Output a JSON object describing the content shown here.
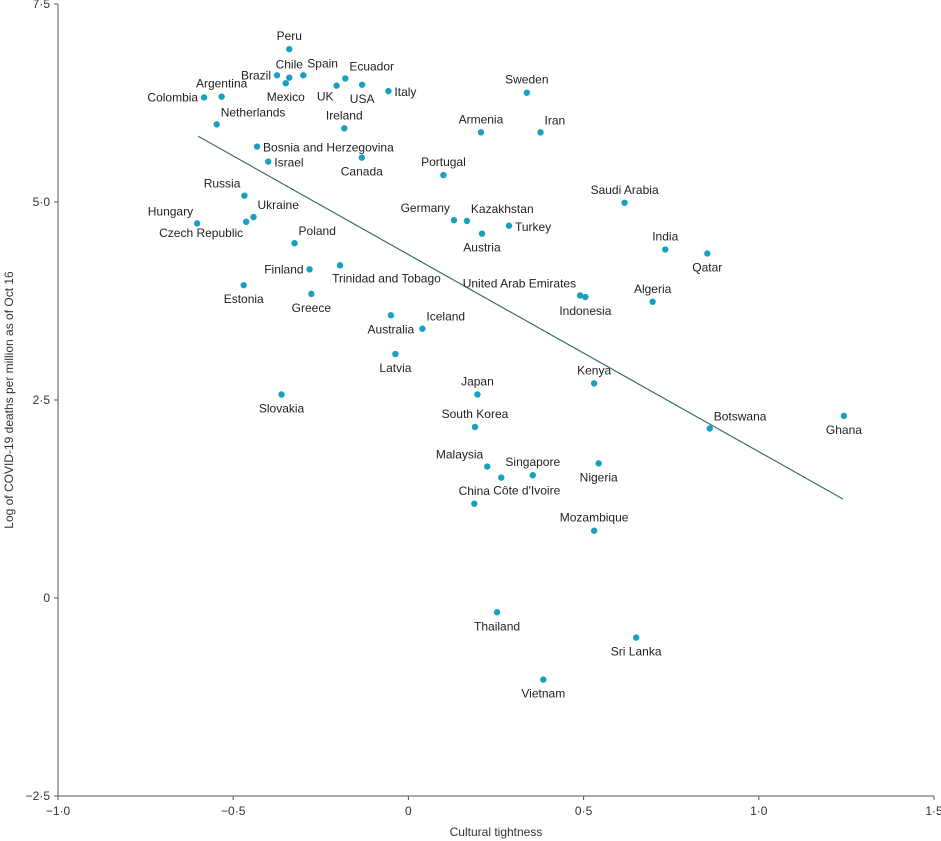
{
  "chart_data": {
    "type": "scatter",
    "xlabel": "Cultural tightness",
    "ylabel": "Log of COVID-19 deaths per million as of Oct 16",
    "xlim": [
      -1.0,
      1.5
    ],
    "ylim": [
      -2.5,
      7.5
    ],
    "xticks": [
      -1.0,
      -0.5,
      0,
      0.5,
      1.0,
      1.5
    ],
    "xtick_labels": [
      "−1·0",
      "−0·5",
      "0",
      "0·5",
      "1·0",
      "1·5"
    ],
    "yticks": [
      -2.5,
      0,
      2.5,
      5.0,
      7.5
    ],
    "ytick_labels": [
      "−2·5",
      "0",
      "2·5",
      "5·0",
      "7·5"
    ],
    "point_color": "#1aa0bf",
    "trend_color": "#3f6b72",
    "trendline": {
      "x": [
        -0.6,
        1.24
      ],
      "y": [
        5.83,
        1.25
      ]
    },
    "points": [
      {
        "name": "Peru",
        "x": -0.34,
        "y": 6.93,
        "pos": "above"
      },
      {
        "name": "Brazil",
        "x": -0.375,
        "y": 6.6,
        "pos": "left"
      },
      {
        "name": "Chile",
        "x": -0.34,
        "y": 6.57,
        "pos": "above"
      },
      {
        "name": "Spain",
        "x": -0.3,
        "y": 6.6,
        "pos": "above-right"
      },
      {
        "name": "Mexico",
        "x": -0.35,
        "y": 6.5,
        "pos": "below"
      },
      {
        "name": "Ecuador",
        "x": -0.18,
        "y": 6.56,
        "pos": "above-right"
      },
      {
        "name": "UK",
        "x": -0.205,
        "y": 6.47,
        "pos": "below-left"
      },
      {
        "name": "USA",
        "x": -0.132,
        "y": 6.48,
        "pos": "below"
      },
      {
        "name": "Italy",
        "x": -0.057,
        "y": 6.4,
        "pos": "right"
      },
      {
        "name": "Argentina",
        "x": -0.533,
        "y": 6.33,
        "pos": "above"
      },
      {
        "name": "Colombia",
        "x": -0.583,
        "y": 6.32,
        "pos": "left"
      },
      {
        "name": "Sweden",
        "x": 0.338,
        "y": 6.38,
        "pos": "above"
      },
      {
        "name": "Netherlands",
        "x": -0.547,
        "y": 5.98,
        "pos": "above-right"
      },
      {
        "name": "Ireland",
        "x": -0.183,
        "y": 5.93,
        "pos": "above"
      },
      {
        "name": "Armenia",
        "x": 0.207,
        "y": 5.88,
        "pos": "above"
      },
      {
        "name": "Iran",
        "x": 0.377,
        "y": 5.88,
        "pos": "above-right"
      },
      {
        "name": "Bosnia and Herzegovina",
        "x": -0.432,
        "y": 5.7,
        "pos": "right"
      },
      {
        "name": "Canada",
        "x": -0.133,
        "y": 5.56,
        "pos": "below"
      },
      {
        "name": "Israel",
        "x": -0.4,
        "y": 5.51,
        "pos": "right"
      },
      {
        "name": "Portugal",
        "x": 0.1,
        "y": 5.34,
        "pos": "above"
      },
      {
        "name": "Russia",
        "x": -0.468,
        "y": 5.08,
        "pos": "above-left"
      },
      {
        "name": "Saudi Arabia",
        "x": 0.617,
        "y": 4.99,
        "pos": "above"
      },
      {
        "name": "Ukraine",
        "x": -0.442,
        "y": 4.81,
        "pos": "above-right"
      },
      {
        "name": "Germany",
        "x": 0.13,
        "y": 4.77,
        "pos": "above-left"
      },
      {
        "name": "Kazakhstan",
        "x": 0.167,
        "y": 4.76,
        "pos": "above-right"
      },
      {
        "name": "Hungary",
        "x": -0.603,
        "y": 4.73,
        "pos": "above-left"
      },
      {
        "name": "Czech Republic",
        "x": -0.463,
        "y": 4.75,
        "pos": "below-left"
      },
      {
        "name": "Turkey",
        "x": 0.287,
        "y": 4.7,
        "pos": "right"
      },
      {
        "name": "Austria",
        "x": 0.21,
        "y": 4.6,
        "pos": "below"
      },
      {
        "name": "Poland",
        "x": -0.325,
        "y": 4.48,
        "pos": "above-right"
      },
      {
        "name": "India",
        "x": 0.733,
        "y": 4.4,
        "pos": "above"
      },
      {
        "name": "Qatar",
        "x": 0.853,
        "y": 4.35,
        "pos": "below"
      },
      {
        "name": "Trinidad and Tobago",
        "x": -0.195,
        "y": 4.2,
        "pos": "below-right"
      },
      {
        "name": "Finland",
        "x": -0.282,
        "y": 4.15,
        "pos": "left"
      },
      {
        "name": "Estonia",
        "x": -0.47,
        "y": 3.95,
        "pos": "below"
      },
      {
        "name": "United Arab Emirates",
        "x": 0.49,
        "y": 3.82,
        "pos": "above-left"
      },
      {
        "name": "Indonesia",
        "x": 0.505,
        "y": 3.8,
        "pos": "below"
      },
      {
        "name": "Greece",
        "x": -0.277,
        "y": 3.84,
        "pos": "below"
      },
      {
        "name": "Algeria",
        "x": 0.697,
        "y": 3.74,
        "pos": "above"
      },
      {
        "name": "Australia",
        "x": -0.05,
        "y": 3.57,
        "pos": "below"
      },
      {
        "name": "Iceland",
        "x": 0.04,
        "y": 3.4,
        "pos": "above-right"
      },
      {
        "name": "Latvia",
        "x": -0.037,
        "y": 3.08,
        "pos": "below"
      },
      {
        "name": "Kenya",
        "x": 0.53,
        "y": 2.71,
        "pos": "above"
      },
      {
        "name": "Japan",
        "x": 0.197,
        "y": 2.57,
        "pos": "above"
      },
      {
        "name": "Slovakia",
        "x": -0.362,
        "y": 2.57,
        "pos": "below"
      },
      {
        "name": "Ghana",
        "x": 1.243,
        "y": 2.3,
        "pos": "below"
      },
      {
        "name": "South Korea",
        "x": 0.19,
        "y": 2.16,
        "pos": "above"
      },
      {
        "name": "Botswana",
        "x": 0.86,
        "y": 2.14,
        "pos": "above-right"
      },
      {
        "name": "Malaysia",
        "x": 0.225,
        "y": 1.66,
        "pos": "above-left"
      },
      {
        "name": "Nigeria",
        "x": 0.543,
        "y": 1.7,
        "pos": "below"
      },
      {
        "name": "Singapore",
        "x": 0.355,
        "y": 1.55,
        "pos": "above"
      },
      {
        "name": "Côte d'Ivoire",
        "x": 0.265,
        "y": 1.52,
        "pos": "below-right"
      },
      {
        "name": "China",
        "x": 0.188,
        "y": 1.19,
        "pos": "above"
      },
      {
        "name": "Mozambique",
        "x": 0.53,
        "y": 0.85,
        "pos": "above"
      },
      {
        "name": "Thailand",
        "x": 0.253,
        "y": -0.18,
        "pos": "below"
      },
      {
        "name": "Sri Lanka",
        "x": 0.65,
        "y": -0.5,
        "pos": "below"
      },
      {
        "name": "Vietnam",
        "x": 0.385,
        "y": -1.03,
        "pos": "below"
      }
    ]
  }
}
